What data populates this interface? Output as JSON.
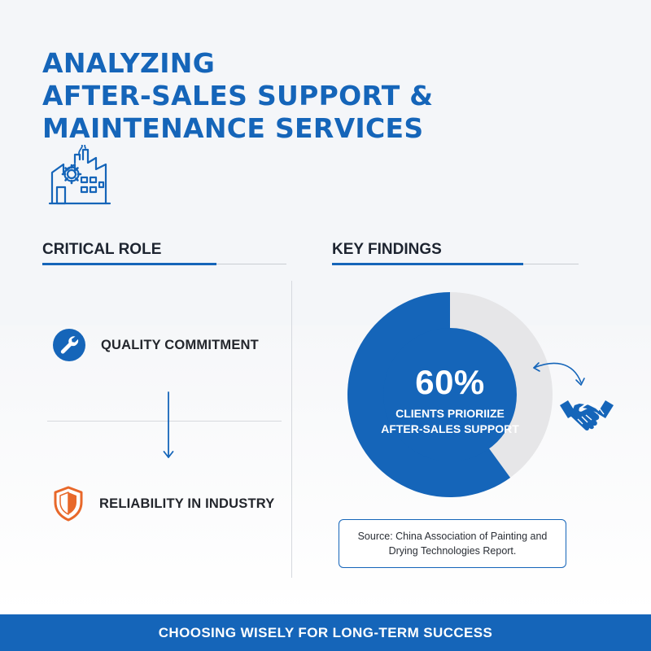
{
  "header": {
    "title_lines": [
      "ANALYZING",
      "AFTER-SALES SUPPORT &",
      "MAINTENANCE SERVICES"
    ],
    "icon": "factory-gear-icon"
  },
  "critical_role": {
    "heading": "CRITICAL ROLE",
    "items": [
      {
        "label": "QUALITY COMMITMENT",
        "icon": "wrench-icon"
      },
      {
        "label": "RELIABILITY IN INDUSTRY",
        "icon": "shield-icon"
      }
    ],
    "connector_icon": "arrow-down-icon"
  },
  "key_findings": {
    "heading": "KEY FINDINGS",
    "percent_value": 60,
    "percent_text": "60%",
    "caption_lines": [
      "CLIENTS PRIORIIZE",
      "AFTER-SALES SUPPORT"
    ],
    "icons": [
      "curved-arrow-icon",
      "handshake-icon"
    ],
    "source_lines": [
      "Source: China Association of Painting and",
      "Drying Technologies Report."
    ]
  },
  "footer": {
    "text": "CHOOSING WISELY FOR LONG-TERM SUCCESS"
  },
  "colors": {
    "accent": "#1565b9",
    "donut_remainder": "#e6e6e8",
    "shield": "#e8682a",
    "background": "#f4f6f9"
  }
}
